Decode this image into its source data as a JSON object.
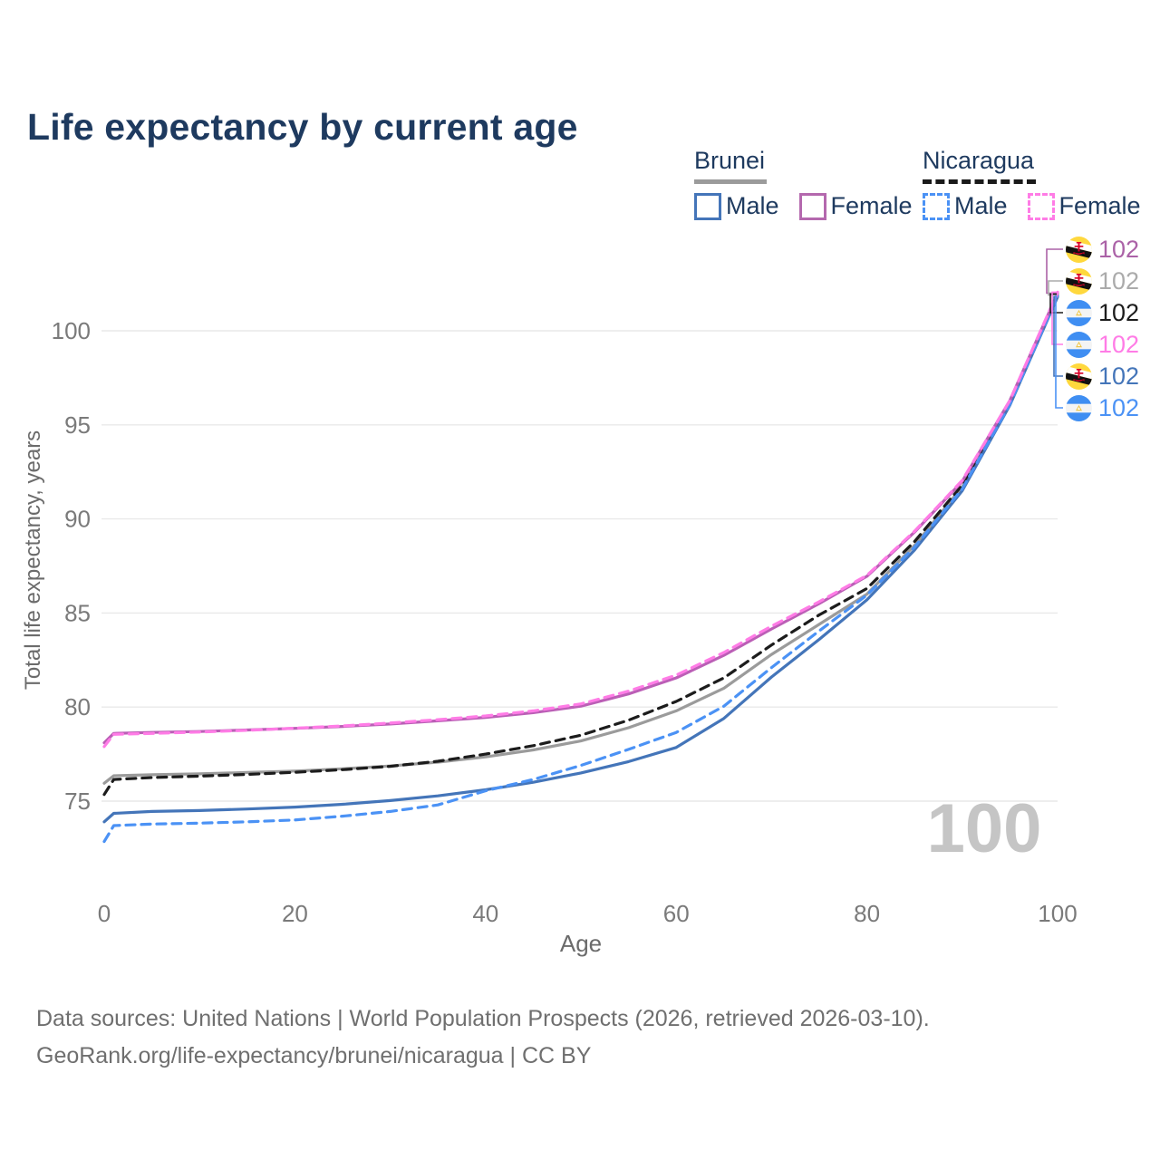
{
  "title": "Life expectancy by current age",
  "legend": {
    "groups": [
      {
        "country": "Brunei",
        "line_style": "solid",
        "color": "#9b9b9b",
        "items": [
          {
            "label": "Male",
            "color": "#4475b9",
            "dashed": false
          },
          {
            "label": "Female",
            "color": "#b468ae",
            "dashed": false
          }
        ]
      },
      {
        "country": "Nicaragua",
        "line_style": "dashed",
        "color": "#1a1a1a",
        "items": [
          {
            "label": "Male",
            "color": "#4b92f5",
            "dashed": true
          },
          {
            "label": "Female",
            "color": "#ff7ce6",
            "dashed": true
          }
        ]
      }
    ]
  },
  "chart_data": {
    "type": "line",
    "title": "Life expectancy by current age",
    "xlabel": "Age",
    "ylabel": "Total life expectancy, years",
    "xticks": [
      0,
      20,
      40,
      60,
      80,
      100
    ],
    "yticks": [
      75,
      80,
      85,
      90,
      95,
      100
    ],
    "xlim": [
      0,
      100
    ],
    "ylim": [
      72.5,
      102.5
    ],
    "grid": "horizontal",
    "x": [
      0,
      1,
      5,
      10,
      15,
      20,
      25,
      30,
      35,
      40,
      45,
      50,
      55,
      60,
      65,
      70,
      75,
      80,
      85,
      90,
      95,
      100
    ],
    "series": [
      {
        "name": "Brunei (both sexes)",
        "color": "#9b9b9b",
        "dashed": false,
        "values": [
          75.95,
          76.35,
          76.4,
          76.45,
          76.52,
          76.6,
          76.72,
          76.87,
          77.07,
          77.35,
          77.72,
          78.2,
          78.9,
          79.8,
          81.0,
          82.8,
          84.4,
          86.0,
          88.6,
          91.7,
          96.15,
          101.9
        ]
      },
      {
        "name": "Nicaragua (both sexes)",
        "color": "#1c1c1c",
        "dashed": true,
        "values": [
          75.35,
          76.15,
          76.25,
          76.33,
          76.42,
          76.53,
          76.67,
          76.85,
          77.12,
          77.5,
          77.95,
          78.5,
          79.3,
          80.3,
          81.55,
          83.3,
          84.9,
          86.3,
          88.8,
          91.8,
          96.2,
          101.95
        ]
      },
      {
        "name": "Brunei Male",
        "color": "#4475b9",
        "dashed": false,
        "values": [
          73.9,
          74.35,
          74.45,
          74.5,
          74.58,
          74.68,
          74.83,
          75.03,
          75.28,
          75.6,
          76.0,
          76.5,
          77.1,
          77.85,
          79.4,
          81.6,
          83.6,
          85.7,
          88.35,
          91.5,
          96.05,
          101.8
        ]
      },
      {
        "name": "Nicaragua Male",
        "color": "#4b92f5",
        "dashed": true,
        "values": [
          72.85,
          73.7,
          73.78,
          73.83,
          73.9,
          74.0,
          74.2,
          74.45,
          74.8,
          75.55,
          76.15,
          76.9,
          77.75,
          78.65,
          80.05,
          82.1,
          84.05,
          85.95,
          88.5,
          91.6,
          96.1,
          101.85
        ]
      },
      {
        "name": "Brunei Female",
        "color": "#bb5fb6",
        "dashed": false,
        "values": [
          78.1,
          78.6,
          78.65,
          78.7,
          78.78,
          78.87,
          78.97,
          79.1,
          79.27,
          79.45,
          79.7,
          80.05,
          80.7,
          81.55,
          82.75,
          84.15,
          85.5,
          86.95,
          89.3,
          92.0,
          96.3,
          102.0
        ]
      },
      {
        "name": "Nicaragua Female",
        "color": "#ff7ce6",
        "dashed": true,
        "values": [
          77.9,
          78.55,
          78.6,
          78.67,
          78.76,
          78.88,
          79.0,
          79.15,
          79.33,
          79.53,
          79.8,
          80.17,
          80.85,
          81.7,
          82.9,
          84.3,
          85.6,
          87.0,
          89.35,
          92.05,
          96.3,
          102.05
        ]
      }
    ]
  },
  "end_labels": [
    {
      "flag": "brunei",
      "value": "102",
      "color": "#ab62a7",
      "series": 4
    },
    {
      "flag": "brunei",
      "value": "102",
      "color": "#ababab",
      "series": 0
    },
    {
      "flag": "nicaragua",
      "value": "102",
      "color": "#1c1c1c",
      "series": 1
    },
    {
      "flag": "nicaragua",
      "value": "102",
      "color": "#ff7ce6",
      "series": 5
    },
    {
      "flag": "brunei",
      "value": "102",
      "color": "#4475b9",
      "series": 2
    },
    {
      "flag": "nicaragua",
      "value": "102",
      "color": "#4b92f5",
      "series": 3
    }
  ],
  "watermark": "100",
  "footer": {
    "line1": "Data sources: United Nations | World Population Prospects (2026, retrieved 2026-03-10).",
    "line2": "GeoRank.org/life-expectancy/brunei/nicaragua | CC BY"
  },
  "colors": {
    "title": "#1e3a5f",
    "axis_text": "#7a7a7a",
    "axis_label": "#6b6b6b",
    "gridline": "#e9e9e9",
    "watermark": "#c5c5c5",
    "footer": "#6f6f6f"
  }
}
